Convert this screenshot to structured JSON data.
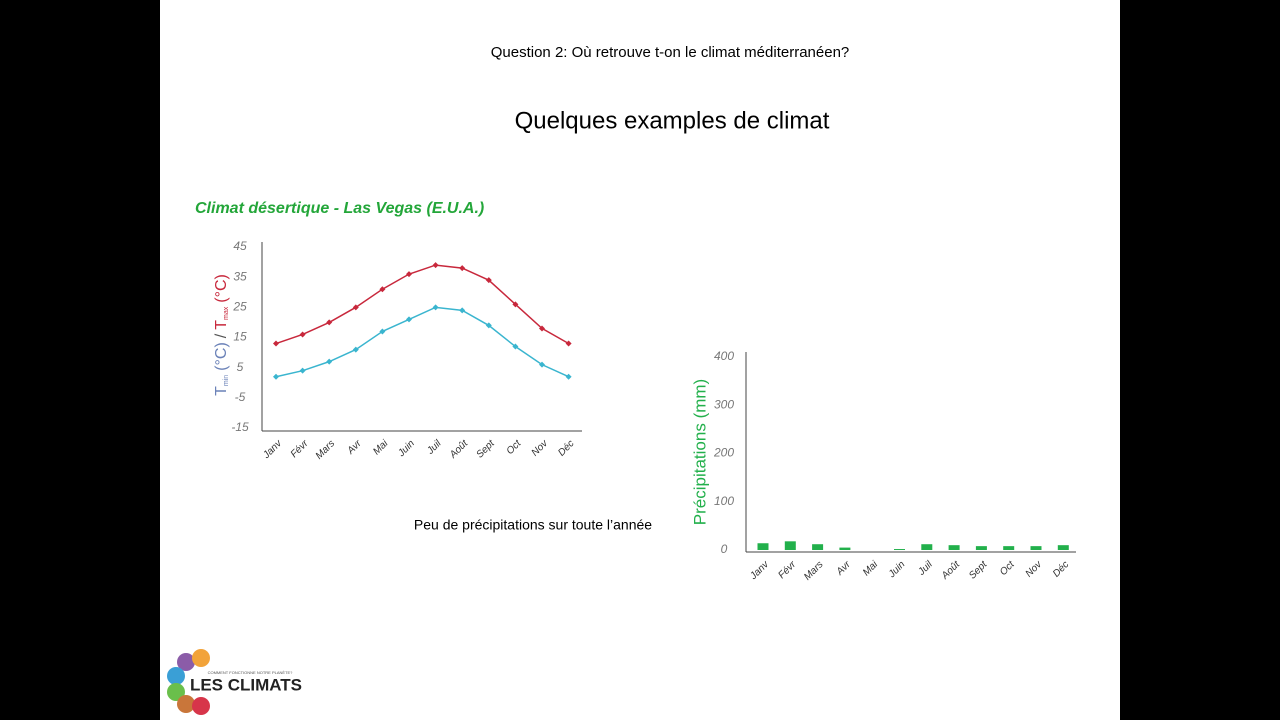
{
  "slide": {
    "question": "Question 2: Où retrouve t-on le climat méditerranéen?",
    "title": "Quelques examples de climat",
    "caption": "Peu de précipitations sur toute l’année",
    "logo": {
      "name": "LES CLIMATS",
      "tagline": "COMMENT FONCTIONNE NOTRE PLANÈTE?"
    }
  },
  "chart_data": [
    {
      "type": "line",
      "title": "Climat désertique - Las Vegas (E.U.A.)",
      "y_label": {
        "min": {
          "symbol": "T",
          "subscript": "min",
          "unit": "(°C)"
        },
        "separator": "/",
        "max": {
          "symbol": "T",
          "subscript": "max",
          "unit": "(°C)"
        }
      },
      "categories": [
        "Janv",
        "Févr",
        "Mars",
        "Avr",
        "Mai",
        "Juin",
        "Juil",
        "Août",
        "Sept",
        "Oct",
        "Nov",
        "Déc"
      ],
      "series": [
        {
          "name": "Tmax",
          "color": "#c8283c",
          "values": [
            13,
            16,
            20,
            25,
            31,
            36,
            39,
            38,
            34,
            26,
            18,
            13
          ]
        },
        {
          "name": "Tmin",
          "color": "#3ab5cf",
          "values": [
            2,
            4,
            7,
            11,
            17,
            21,
            25,
            24,
            19,
            12,
            6,
            2
          ]
        }
      ],
      "ylim": [
        -15,
        45
      ],
      "yticks": [
        -15,
        -5,
        5,
        15,
        25,
        35,
        45
      ],
      "grid": false
    },
    {
      "type": "bar",
      "y_label": "Précipitations (mm)",
      "categories": [
        "Janv",
        "Févr",
        "Mars",
        "Avr",
        "Mai",
        "Juin",
        "Juil",
        "Août",
        "Sept",
        "Oct",
        "Nov",
        "Déc"
      ],
      "values": [
        14,
        18,
        12,
        5,
        0,
        2,
        12,
        10,
        8,
        8,
        8,
        10
      ],
      "color": "#22b04b",
      "ylim": [
        0,
        400
      ],
      "yticks": [
        0,
        100,
        200,
        300,
        400
      ],
      "grid": false
    }
  ]
}
